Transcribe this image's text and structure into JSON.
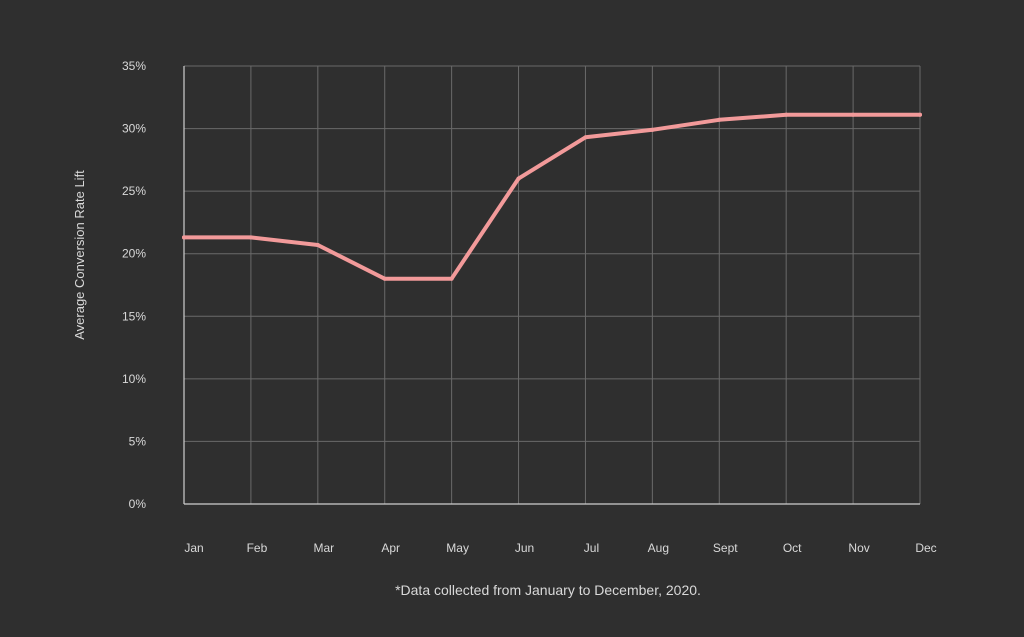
{
  "chart_data": {
    "type": "line",
    "ylabel": "Average Conversion Rate Lift",
    "footnote": "*Data collected from January to December, 2020.",
    "categories": [
      "Jan",
      "Feb",
      "Mar",
      "Apr",
      "May",
      "Jun",
      "Jul",
      "Aug",
      "Sept",
      "Oct",
      "Nov",
      "Dec"
    ],
    "y_ticks": [
      "0%",
      "5%",
      "10%",
      "15%",
      "20%",
      "25%",
      "30%",
      "35%"
    ],
    "ylim": [
      0,
      35
    ],
    "grid": true,
    "series": [
      {
        "values": [
          21.3,
          21.3,
          20.7,
          18.0,
          18.0,
          26.0,
          29.3,
          29.9,
          30.7,
          31.1,
          31.1,
          31.1
        ],
        "color": "#f29a9a"
      }
    ],
    "colors": {
      "background": "#2f2f2f",
      "grid": "#6a6a6a",
      "axis": "#cfcfcf",
      "text": "#d9d9d9"
    }
  }
}
